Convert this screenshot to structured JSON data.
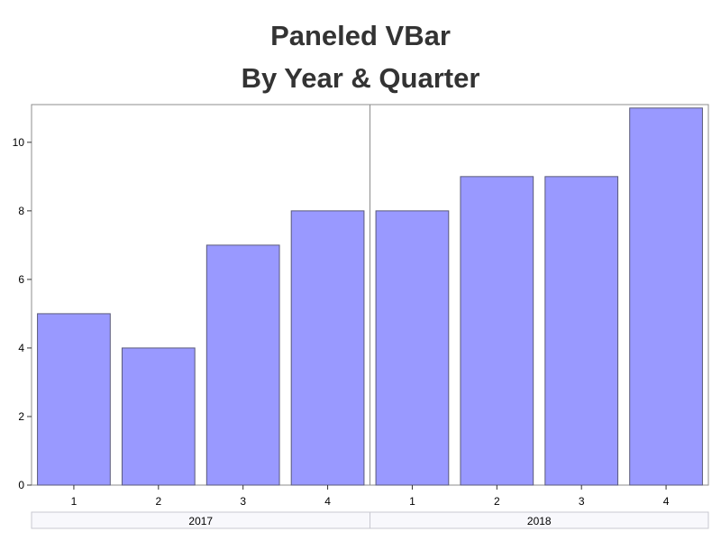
{
  "chart_data": {
    "type": "bar",
    "title": "Paneled VBar",
    "subtitle": "By Year & Quarter",
    "ylim": [
      0,
      11.1
    ],
    "y_ticks": [
      0,
      2,
      4,
      6,
      8,
      10
    ],
    "grid": false,
    "bar_color": "#9999ff",
    "bar_edge_color": "#5a5a7a",
    "panels": [
      {
        "label": "2017",
        "categories": [
          "1",
          "2",
          "3",
          "4"
        ],
        "values": [
          5,
          4,
          7,
          8
        ]
      },
      {
        "label": "2018",
        "categories": [
          "1",
          "2",
          "3",
          "4"
        ],
        "values": [
          8,
          9,
          9,
          11
        ]
      }
    ]
  }
}
